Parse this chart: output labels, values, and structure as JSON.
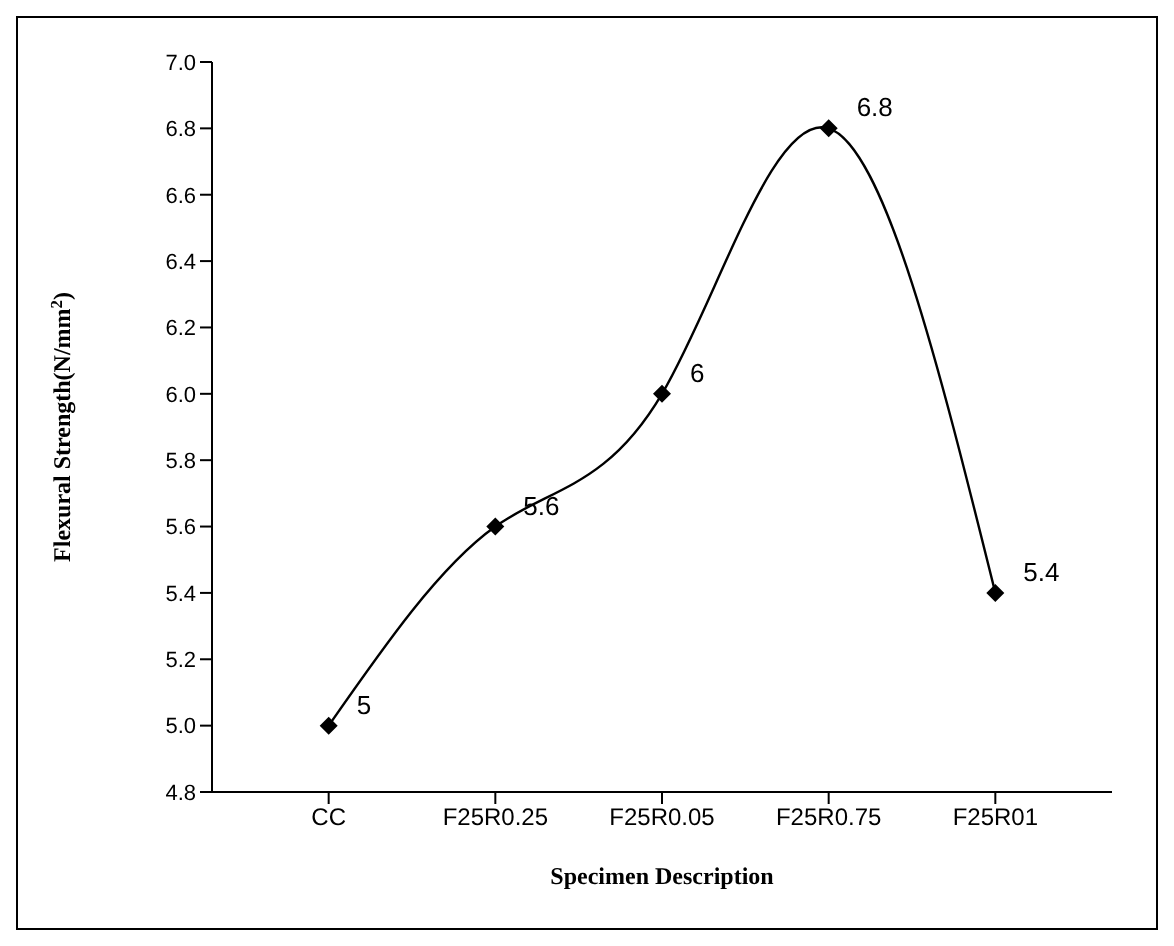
{
  "chart_data": {
    "type": "line",
    "xlabel": "Specimen Description",
    "ylabel": "Flexural Strength(N/mm$^{2}$)",
    "categories": [
      "CC",
      "F25R0.25",
      "F25R0.05",
      "F25R0.75",
      "F25R01"
    ],
    "series": [
      {
        "color": "#000000",
        "values": [
          5,
          5.6,
          6,
          6.8,
          5.4
        ]
      }
    ],
    "ylim": [
      4.8,
      7.0
    ],
    "yticks": [
      {
        "value": 4.8,
        "label": "4.8"
      },
      {
        "value": 5.0,
        "label": "5.0"
      },
      {
        "value": 5.2,
        "label": "5.2"
      },
      {
        "value": 5.4,
        "label": "5.4"
      },
      {
        "value": 5.6,
        "label": "5.6"
      },
      {
        "value": 5.8,
        "label": "5.8"
      },
      {
        "value": 6.0,
        "label": "6.0"
      },
      {
        "value": 6.2,
        "label": "6.2"
      },
      {
        "value": 6.4,
        "label": "6.4"
      },
      {
        "value": 6.6,
        "label": "6.6"
      },
      {
        "value": 6.8,
        "label": "6.8"
      },
      {
        "value": 7.0,
        "label": "7.0"
      }
    ],
    "marker": "diamond",
    "line_style": "solid",
    "grid": false,
    "legend": false,
    "data_labels": true
  }
}
